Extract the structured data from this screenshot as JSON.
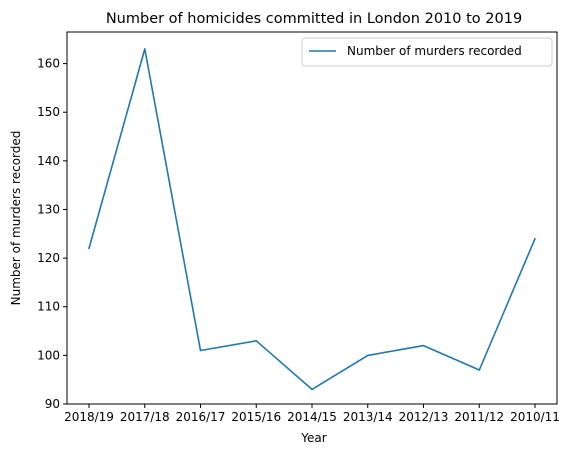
{
  "chart_data": {
    "type": "line",
    "title": "Number of homicides committed in London 2010 to 2019",
    "xlabel": "Year",
    "ylabel": "Number of murders recorded",
    "categories": [
      "2018/19",
      "2017/18",
      "2016/17",
      "2015/16",
      "2014/15",
      "2013/14",
      "2012/13",
      "2011/12",
      "2010/11"
    ],
    "series": [
      {
        "name": "Number of murders recorded",
        "values": [
          122,
          163,
          101,
          103,
          93,
          100,
          102,
          97,
          124
        ],
        "color": "#1f77b4"
      }
    ],
    "ylim": [
      90,
      166.5
    ],
    "yticks": [
      90,
      100,
      110,
      120,
      130,
      140,
      150,
      160
    ],
    "grid": false,
    "legend": "top-right"
  }
}
